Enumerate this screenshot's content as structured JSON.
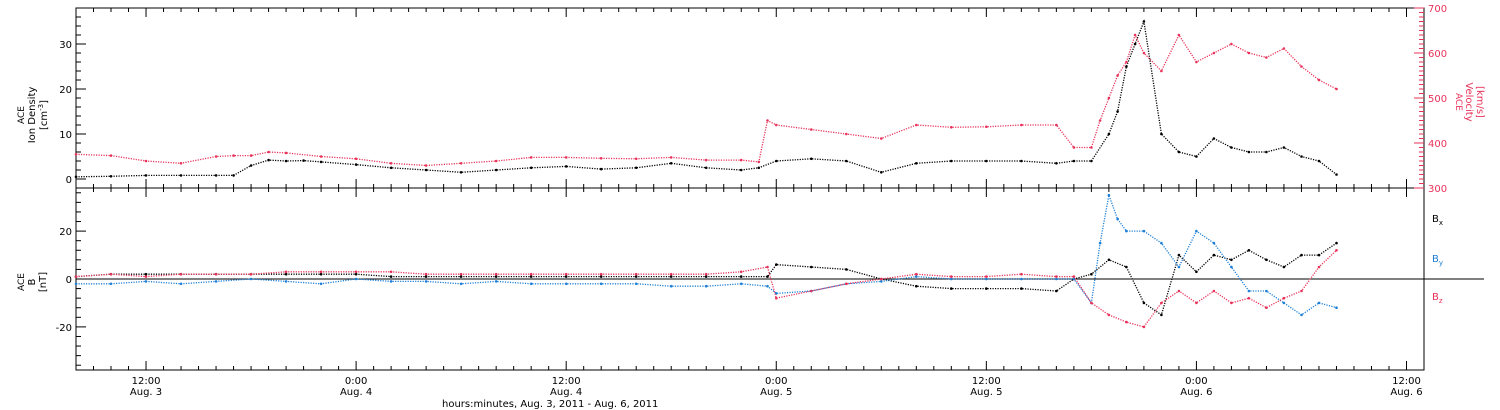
{
  "xlabel": "hours:minutes, Aug. 3, 2011 - Aug. 6, 2011",
  "colors": {
    "black": "#000000",
    "red": "#e8325a",
    "blue": "#1e7fd6"
  },
  "top_ylabel": {
    "l1": "ACE",
    "l2": "Ion Density",
    "l3": "[cm",
    "sup": "-3",
    "close": "]"
  },
  "right_ylabel": {
    "l1": "ACE",
    "l2": "Velocity",
    "l3": "[km/s]"
  },
  "bottom_ylabel": {
    "l1": "ACE",
    "l2": "B",
    "l3": "[nT]"
  },
  "legend": [
    {
      "base": "B",
      "sub": "x",
      "color": "#000000"
    },
    {
      "base": "B",
      "sub": "y",
      "color": "#1e7fd6"
    },
    {
      "base": "B",
      "sub": "z",
      "color": "#e8325a"
    }
  ],
  "x_ticks": [
    {
      "t": 12,
      "time": "12:00",
      "date": "Aug. 3"
    },
    {
      "t": 24,
      "time": "0:00",
      "date": "Aug. 4"
    },
    {
      "t": 36,
      "time": "12:00",
      "date": "Aug. 4"
    },
    {
      "t": 48,
      "time": "0:00",
      "date": "Aug. 5"
    },
    {
      "t": 60,
      "time": "12:00",
      "date": "Aug. 5"
    },
    {
      "t": 72,
      "time": "0:00",
      "date": "Aug. 6"
    },
    {
      "t": 84,
      "time": "12:00",
      "date": "Aug. 6"
    }
  ],
  "chart_data": [
    {
      "type": "scatter",
      "title": "",
      "xlim": [
        8,
        85
      ],
      "ylabel": "ACE Ion Density [cm-3]",
      "ylim": [
        -2,
        38
      ],
      "y_ticks": [
        0,
        10,
        20,
        30
      ],
      "y2label": "ACE Velocity [km/s]",
      "y2lim": [
        300,
        700
      ],
      "y2_ticks": [
        300,
        400,
        500,
        600,
        700
      ],
      "series": [
        {
          "name": "Ion Density",
          "axis": "left",
          "color": "#000000",
          "x": [
            8,
            10,
            12,
            14,
            16,
            17,
            18,
            19,
            20,
            21,
            22,
            24,
            26,
            28,
            30,
            32,
            34,
            36,
            38,
            40,
            42,
            44,
            46,
            47,
            48,
            50,
            52,
            54,
            56,
            58,
            60,
            62,
            64,
            65,
            66,
            67,
            67.5,
            68,
            68.5,
            69,
            70,
            71,
            72,
            73,
            74,
            75,
            76,
            77,
            78,
            79,
            80
          ],
          "y": [
            0.5,
            0.6,
            0.8,
            0.8,
            0.8,
            0.8,
            3,
            4.2,
            4,
            4.1,
            3.8,
            3.2,
            2.5,
            2,
            1.5,
            2,
            2.5,
            2.8,
            2.2,
            2.5,
            3.5,
            2.5,
            2,
            2.5,
            4,
            4.5,
            4,
            1.5,
            3.5,
            4,
            4,
            4,
            3.5,
            4,
            4,
            10,
            15,
            25,
            30,
            35,
            10,
            6,
            5,
            9,
            7,
            6,
            6,
            7,
            5,
            4,
            1
          ]
        },
        {
          "name": "Velocity",
          "axis": "right",
          "color": "#e8325a",
          "x": [
            8,
            10,
            12,
            14,
            16,
            17,
            18,
            19,
            20,
            22,
            24,
            26,
            28,
            30,
            32,
            34,
            36,
            38,
            40,
            42,
            44,
            46,
            47,
            47.5,
            48,
            50,
            52,
            54,
            56,
            58,
            60,
            62,
            64,
            65,
            66,
            66.5,
            67,
            67.5,
            68,
            68.5,
            69,
            70,
            71,
            72,
            73,
            74,
            75,
            76,
            77,
            78,
            79,
            80
          ],
          "y": [
            375,
            372,
            360,
            355,
            370,
            372,
            372,
            380,
            378,
            370,
            365,
            355,
            350,
            355,
            360,
            368,
            368,
            366,
            365,
            368,
            362,
            362,
            358,
            450,
            440,
            430,
            420,
            410,
            440,
            435,
            436,
            440,
            440,
            390,
            390,
            450,
            500,
            550,
            580,
            640,
            600,
            560,
            640,
            580,
            600,
            620,
            600,
            590,
            610,
            570,
            540,
            520
          ]
        }
      ]
    },
    {
      "type": "scatter",
      "title": "",
      "xlim": [
        8,
        85
      ],
      "ylabel": "ACE B [nT]",
      "ylim": [
        -38,
        38
      ],
      "y_ticks": [
        -20,
        0,
        20
      ],
      "series": [
        {
          "name": "Bx",
          "color": "#000000",
          "x": [
            8,
            10,
            12,
            14,
            16,
            18,
            20,
            22,
            24,
            26,
            28,
            30,
            32,
            34,
            36,
            38,
            40,
            42,
            44,
            46,
            47.5,
            48,
            50,
            52,
            54,
            56,
            58,
            60,
            62,
            64,
            65,
            66,
            67,
            68,
            69,
            70,
            71,
            72,
            73,
            74,
            75,
            76,
            77,
            78,
            79,
            80
          ],
          "y": [
            1,
            2,
            2,
            2,
            2,
            2,
            2,
            2,
            2,
            1,
            1,
            1,
            1,
            1,
            1,
            1,
            1,
            1,
            1,
            1,
            1,
            6,
            5,
            4,
            0,
            -3,
            -4,
            -4,
            -4,
            -5,
            0,
            2,
            8,
            5,
            -10,
            -15,
            10,
            3,
            10,
            8,
            12,
            8,
            5,
            10,
            10,
            15
          ]
        },
        {
          "name": "By",
          "color": "#1e7fd6",
          "x": [
            8,
            10,
            12,
            14,
            16,
            18,
            20,
            22,
            24,
            26,
            28,
            30,
            32,
            34,
            36,
            38,
            40,
            42,
            44,
            46,
            47.5,
            48,
            50,
            52,
            54,
            56,
            58,
            60,
            62,
            64,
            65,
            66,
            66.5,
            67,
            67.5,
            68,
            69,
            70,
            71,
            72,
            73,
            74,
            75,
            76,
            77,
            78,
            79,
            80
          ],
          "y": [
            -2,
            -2,
            -1,
            -2,
            -1,
            0,
            -1,
            -2,
            0,
            -1,
            -1,
            -2,
            -1,
            -2,
            -2,
            -2,
            -2,
            -3,
            -3,
            -2,
            -3,
            -6,
            -5,
            -2,
            -1,
            1,
            0,
            0,
            0,
            0,
            0,
            -10,
            15,
            35,
            25,
            20,
            20,
            15,
            5,
            20,
            15,
            5,
            -5,
            -5,
            -10,
            -15,
            -10,
            -12
          ]
        },
        {
          "name": "Bz",
          "color": "#e8325a",
          "x": [
            8,
            10,
            12,
            14,
            16,
            18,
            20,
            22,
            24,
            26,
            28,
            30,
            32,
            34,
            36,
            38,
            40,
            42,
            44,
            46,
            47.5,
            48,
            50,
            52,
            54,
            56,
            58,
            60,
            62,
            64,
            65,
            66,
            67,
            68,
            69,
            70,
            71,
            72,
            73,
            74,
            75,
            76,
            77,
            78,
            79,
            80
          ],
          "y": [
            1,
            2,
            1,
            2,
            2,
            2,
            3,
            3,
            3,
            3,
            2,
            2,
            2,
            2,
            2,
            2,
            2,
            2,
            2,
            3,
            5,
            -8,
            -5,
            -2,
            0,
            2,
            1,
            1,
            2,
            1,
            1,
            -10,
            -15,
            -18,
            -20,
            -10,
            -5,
            -10,
            -5,
            -10,
            -8,
            -12,
            -8,
            -5,
            5,
            12
          ]
        }
      ]
    }
  ]
}
